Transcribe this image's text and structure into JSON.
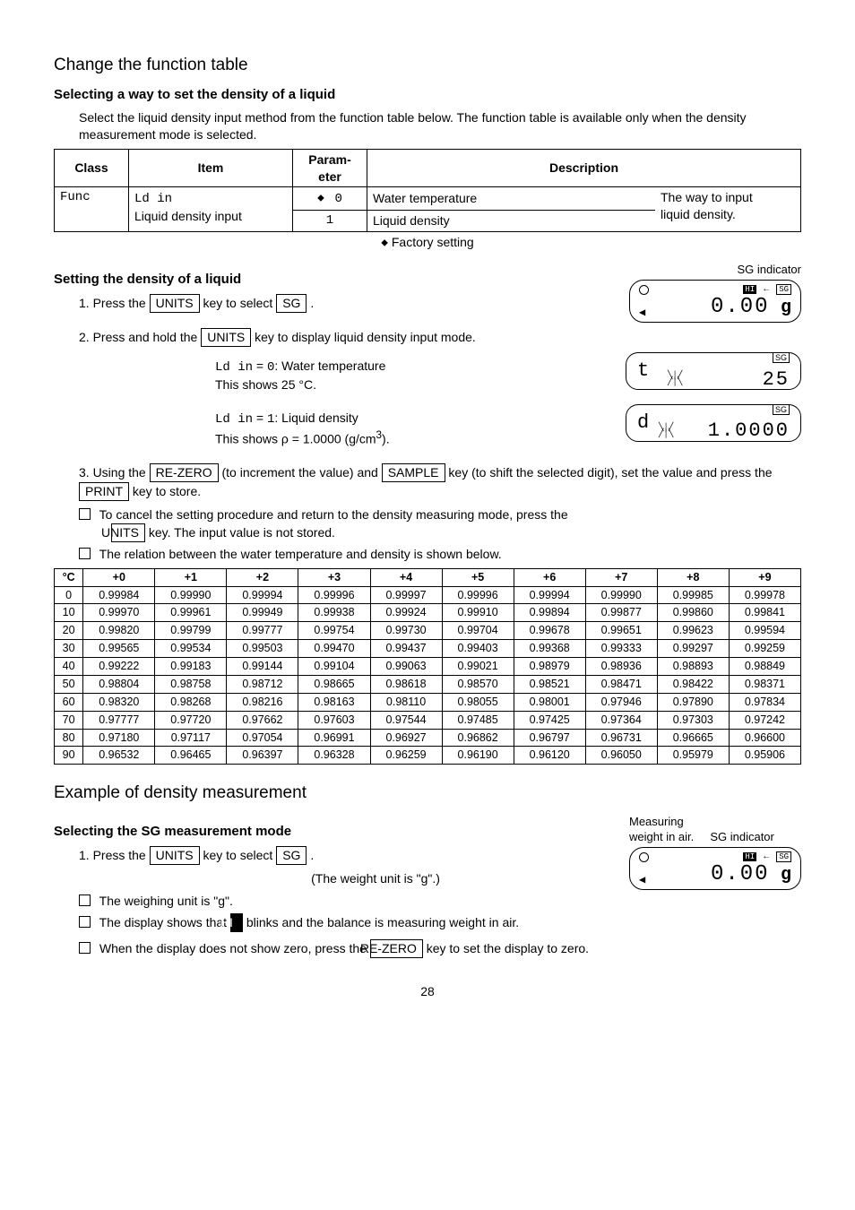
{
  "section1": {
    "title": "Change the function table",
    "sub1": {
      "heading": "Selecting a way to set the density of a liquid",
      "para": "Select the liquid density input method from the function table below. The function table is available only when the density measurement mode is selected."
    },
    "funcTable": {
      "headers": {
        "c1": "Class",
        "c2": "Item",
        "c3": "Param-\neter",
        "c4": "Description"
      },
      "classVal": "Func",
      "itemLine1": "Ld in",
      "itemLine2": "Liquid density input",
      "param0": "0",
      "param1": "1",
      "desc0": "Water temperature",
      "desc1": "Liquid density",
      "descRight1": "The way to input",
      "descRight2": "liquid density.",
      "factory": "Factory setting"
    },
    "sub2": {
      "heading": "Setting the density of a liquid",
      "step1a": "1. Press the ",
      "unitsKey": "UNITS",
      "step1b": " key to select ",
      "sgKey": "SG",
      "step1c": " .",
      "sgIndicator": "SG indicator",
      "lcd1": {
        "hi": "HI",
        "sg": "SG",
        "digits": "0.00",
        "unit": "g"
      },
      "step2a": "2. Press and hold the ",
      "step2b": " key to display liquid density input mode.",
      "ldin0a": "Ld in",
      "ldin0b": " = ",
      "ldin0val": "0",
      "ldin0txt": ": Water temperature",
      "ldin0line2": "This shows 25 °C.",
      "lcd2a": {
        "left": "t",
        "sg": "SG",
        "digits": "25"
      },
      "ldin1a": "Ld in",
      "ldin1b": " = ",
      "ldin1val": "1",
      "ldin1txt": ": Liquid density",
      "ldin1line2a": "This shows ρ = 1.0000 (g/cm",
      "ldin1line2sup": "3",
      "ldin1line2b": ").",
      "lcd2b": {
        "left": "d",
        "sg": "SG",
        "digits": "1.0000"
      },
      "step3a": "3. Using the ",
      "rezero": "RE-ZERO",
      "step3b": " (to increment the value) and ",
      "sample": "SAMPLE",
      "step3c": " key (to shift the selected digit), set the value and press the ",
      "print": "PRINT",
      "step3d": " key to store.",
      "cancel1": "To cancel the setting procedure and return to the density measuring mode, press the",
      "cancel2": " key. The input value is not stored.",
      "relation": "The relation between the water temperature and density is shown below."
    },
    "densTable": {
      "headers": [
        "°C",
        "+0",
        "+1",
        "+2",
        "+3",
        "+4",
        "+5",
        "+6",
        "+7",
        "+8",
        "+9"
      ],
      "rows": [
        [
          "0",
          "0.99984",
          "0.99990",
          "0.99994",
          "0.99996",
          "0.99997",
          "0.99996",
          "0.99994",
          "0.99990",
          "0.99985",
          "0.99978"
        ],
        [
          "10",
          "0.99970",
          "0.99961",
          "0.99949",
          "0.99938",
          "0.99924",
          "0.99910",
          "0.99894",
          "0.99877",
          "0.99860",
          "0.99841"
        ],
        [
          "20",
          "0.99820",
          "0.99799",
          "0.99777",
          "0.99754",
          "0.99730",
          "0.99704",
          "0.99678",
          "0.99651",
          "0.99623",
          "0.99594"
        ],
        [
          "30",
          "0.99565",
          "0.99534",
          "0.99503",
          "0.99470",
          "0.99437",
          "0.99403",
          "0.99368",
          "0.99333",
          "0.99297",
          "0.99259"
        ],
        [
          "40",
          "0.99222",
          "0.99183",
          "0.99144",
          "0.99104",
          "0.99063",
          "0.99021",
          "0.98979",
          "0.98936",
          "0.98893",
          "0.98849"
        ],
        [
          "50",
          "0.98804",
          "0.98758",
          "0.98712",
          "0.98665",
          "0.98618",
          "0.98570",
          "0.98521",
          "0.98471",
          "0.98422",
          "0.98371"
        ],
        [
          "60",
          "0.98320",
          "0.98268",
          "0.98216",
          "0.98163",
          "0.98110",
          "0.98055",
          "0.98001",
          "0.97946",
          "0.97890",
          "0.97834"
        ],
        [
          "70",
          "0.97777",
          "0.97720",
          "0.97662",
          "0.97603",
          "0.97544",
          "0.97485",
          "0.97425",
          "0.97364",
          "0.97303",
          "0.97242"
        ],
        [
          "80",
          "0.97180",
          "0.97117",
          "0.97054",
          "0.96991",
          "0.96927",
          "0.96862",
          "0.96797",
          "0.96731",
          "0.96665",
          "0.96600"
        ],
        [
          "90",
          "0.96532",
          "0.96465",
          "0.96397",
          "0.96328",
          "0.96259",
          "0.96190",
          "0.96120",
          "0.96050",
          "0.95979",
          "0.95906"
        ]
      ]
    }
  },
  "section2": {
    "title": "Example of density measurement",
    "sub1": {
      "heading": "Selecting the SG measurement mode",
      "step1a": "1. Press the ",
      "step1b": " key to select ",
      "step1c": " .",
      "weightUnitNote": "(The weight unit is \"g\".)",
      "chk1": "The weighing unit is \"g\".",
      "chk2a": "The display shows that ",
      "chk2b": " blinks and the balance is measuring weight in air.",
      "chk3a": "When the display does not show zero, press the ",
      "chk3b": " key to set the display to zero.",
      "measuring": "Measuring",
      "weightInAir": "weight in air.",
      "sgIndicator": "SG indicator",
      "lcd": {
        "hi": "HI",
        "sg": "SG",
        "digits": "0.00",
        "unit": "g"
      }
    }
  },
  "pageNum": "28"
}
